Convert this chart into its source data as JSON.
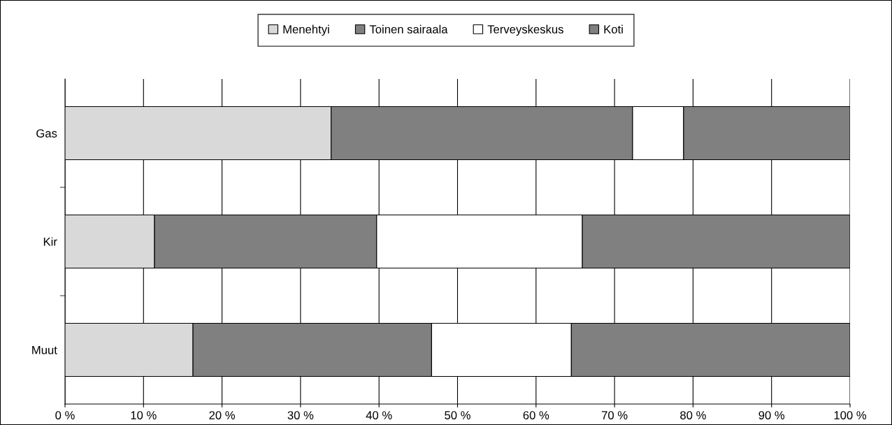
{
  "chart_data": {
    "type": "bar",
    "orientation": "horizontal",
    "stacked": true,
    "categories": [
      "Gas",
      "Kir",
      "Muut"
    ],
    "series": [
      {
        "name": "Menehtyi",
        "color": "#d9d9d9",
        "values": [
          33.9,
          11.4,
          16.3
        ]
      },
      {
        "name": "Toinen sairaala",
        "color": "#808080",
        "values": [
          38.4,
          28.3,
          30.4
        ]
      },
      {
        "name": "Terveyskeskus",
        "color": "#ffffff",
        "values": [
          6.5,
          26.2,
          17.8
        ]
      },
      {
        "name": "Koti",
        "color": "#808080",
        "values": [
          21.2,
          34.1,
          35.5
        ]
      }
    ],
    "xlim": [
      0,
      100
    ],
    "xticks": [
      {
        "value": 0,
        "label": "0 %"
      },
      {
        "value": 10,
        "label": "10 %"
      },
      {
        "value": 20,
        "label": "20 %"
      },
      {
        "value": 30,
        "label": "30 %"
      },
      {
        "value": 40,
        "label": "40 %"
      },
      {
        "value": 50,
        "label": "50 %"
      },
      {
        "value": 60,
        "label": "60 %"
      },
      {
        "value": 70,
        "label": "70 %"
      },
      {
        "value": 80,
        "label": "80 %"
      },
      {
        "value": 90,
        "label": "90 %"
      },
      {
        "value": 100,
        "label": "100 %"
      }
    ],
    "grid": "x",
    "legend": "top"
  }
}
